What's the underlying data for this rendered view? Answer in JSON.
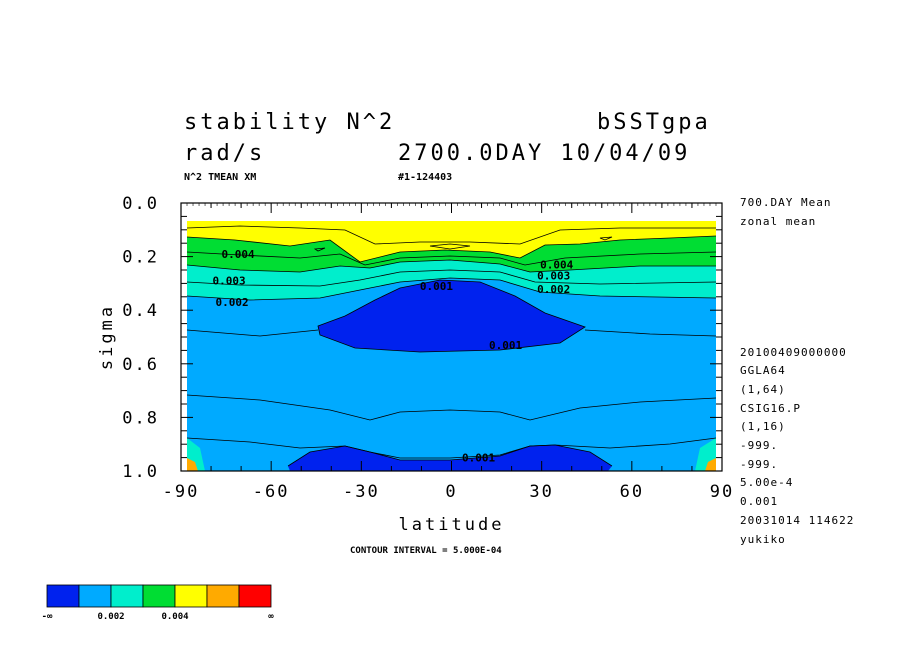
{
  "header": {
    "variable": "stability N^2",
    "units": "rad/s",
    "experiment": "bSSTgpa",
    "time": "2700.0DAY 10/04/09",
    "subtitle_left": "N^2 TMEAN XM",
    "subtitle_right": "#1-124403"
  },
  "side_info": {
    "mean_label": "700.DAY Mean",
    "mean_type": "zonal mean",
    "lines": [
      "20100409000000",
      "GGLA64",
      "(1,64)",
      "CSIG16.P",
      "(1,16)",
      "-999.",
      "-999.",
      "5.00e-4",
      "0.001",
      "20031014 114622",
      "yukiko"
    ]
  },
  "footer": {
    "contour_interval": "CONTOUR INTERVAL = 5.000E-04"
  },
  "colorbar": {
    "colors": [
      "#0022ee",
      "#00aaff",
      "#00eecc",
      "#00dd33",
      "#ffff00",
      "#ffaa00",
      "#ff0000"
    ],
    "labels": [
      "-∞",
      "0.002",
      "0.004",
      "∞"
    ]
  },
  "chart_data": {
    "type": "contour",
    "title": "stability N^2",
    "xlabel": "latitude",
    "ylabel": "sigma",
    "xlim": [
      -90,
      90
    ],
    "ylim": [
      0.0,
      1.0
    ],
    "y_inverted": true,
    "x_ticks": [
      "-90",
      "-60",
      "-30",
      "0",
      "30",
      "60",
      "90"
    ],
    "y_ticks": [
      "0.0",
      "0.2",
      "0.4",
      "0.6",
      "0.8",
      "1.0"
    ],
    "contour_interval": 0.0005,
    "contour_labels": [
      {
        "text": "0.004",
        "lat": -71,
        "sigma": 0.19
      },
      {
        "text": "0.003",
        "lat": -74,
        "sigma": 0.29
      },
      {
        "text": "0.002",
        "lat": -73,
        "sigma": 0.37
      },
      {
        "text": "0.001",
        "lat": -5,
        "sigma": 0.31
      },
      {
        "text": "0.004",
        "lat": 35,
        "sigma": 0.23
      },
      {
        "text": "0.003",
        "lat": 34,
        "sigma": 0.27
      },
      {
        "text": "0.002",
        "lat": 34,
        "sigma": 0.32
      },
      {
        "text": "0.001",
        "lat": 18,
        "sigma": 0.53
      },
      {
        "text": "0.001",
        "lat": 9,
        "sigma": 0.95
      }
    ]
  }
}
